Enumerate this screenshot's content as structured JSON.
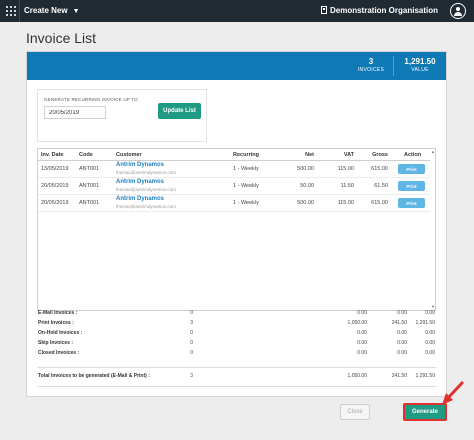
{
  "topbar": {
    "create_new": "Create New",
    "organisation": "Demonstration Organisation"
  },
  "page": {
    "title": "Invoice List"
  },
  "header_stats": {
    "invoices_count": "3",
    "invoices_label": "INVOICES",
    "value_amount": "1,291.50",
    "value_label": "VALUE"
  },
  "generate_form": {
    "label": "GENERATE RECURRING INVOICE UP TO :",
    "date_value": "20/05/2019",
    "update_button": "Update List"
  },
  "table": {
    "columns": [
      "Inv. Date",
      "Code",
      "Customer",
      "Recurring",
      "Net",
      "VAT",
      "Gross",
      "Action"
    ],
    "rows": [
      {
        "date": "13/05/2019",
        "code": "ANT001",
        "customer": "Antrim Dynamos",
        "email": "thomas@antrimdynamos.com",
        "recurring": "1 - Weekly",
        "net": "500.00",
        "vat": "115.00",
        "gross": "615.00",
        "action": "Print"
      },
      {
        "date": "20/05/2019",
        "code": "ANT001",
        "customer": "Antrim Dynamos",
        "email": "thomas@antrimdynamos.com",
        "recurring": "1 - Weekly",
        "net": "50.00",
        "vat": "11.50",
        "gross": "61.50",
        "action": "Print"
      },
      {
        "date": "20/05/2019",
        "code": "ANT001",
        "customer": "Antrim Dynamos",
        "email": "thomas@antrimdynamos.com",
        "recurring": "1 - Weekly",
        "net": "500.00",
        "vat": "115.00",
        "gross": "615.00",
        "action": "Print"
      }
    ]
  },
  "summary": {
    "rows": [
      {
        "label": "E-Mail Invoices :",
        "count": "0",
        "net": "0.00",
        "vat": "0.00",
        "gross": "0.00"
      },
      {
        "label": "Print Invoices :",
        "count": "3",
        "net": "1,050.00",
        "vat": "241.50",
        "gross": "1,291.50"
      },
      {
        "label": "On-Hold Invoices :",
        "count": "0",
        "net": "0.00",
        "vat": "0.00",
        "gross": "0.00"
      },
      {
        "label": "Skip Invoices :",
        "count": "0",
        "net": "0.00",
        "vat": "0.00",
        "gross": "0.00"
      },
      {
        "label": "Closed Invoices :",
        "count": "0",
        "net": "0.00",
        "vat": "0.00",
        "gross": "0.00"
      }
    ],
    "total": {
      "label": "Total Invoices to be generated (E-Mail & Print) :",
      "count": "3",
      "net": "1,050.00",
      "vat": "241.50",
      "gross": "1,291.50"
    }
  },
  "footer": {
    "close_button": "Close",
    "generate_button": "Generate"
  },
  "colors": {
    "topbar": "#1f2a33",
    "header": "#0f79b6",
    "accent_green": "#1f9b84",
    "link_blue": "#1a7fc1",
    "print_blue": "#5fb5e3",
    "arrow_red": "#e0302f"
  },
  "icons": {
    "apps": "grid-icon",
    "chevron": "chevron-down-icon",
    "organisation": "building-icon",
    "user": "user-circle-icon"
  }
}
